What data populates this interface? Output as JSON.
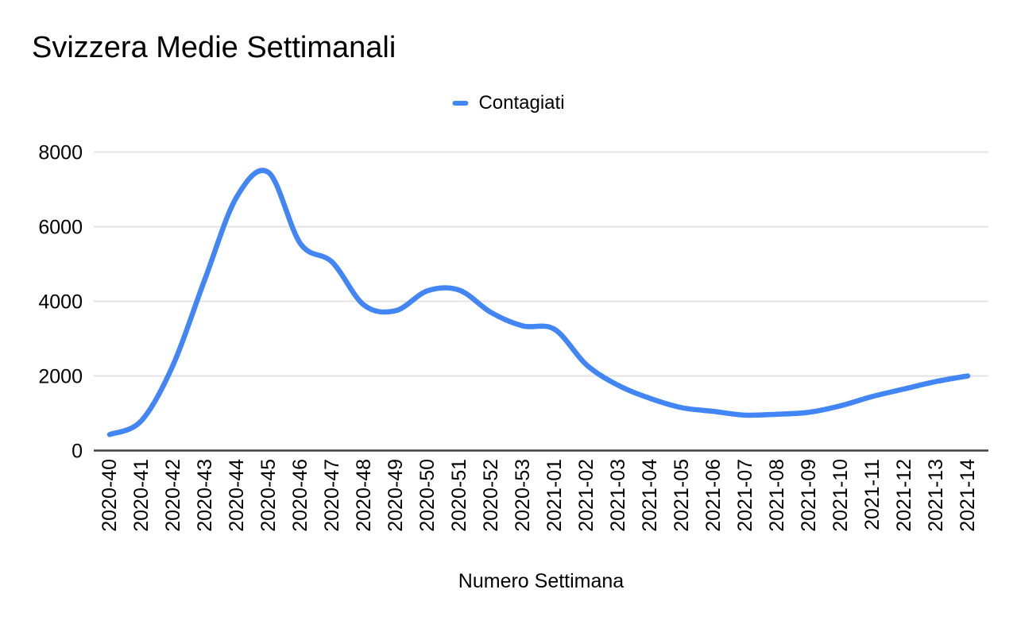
{
  "chart_data": {
    "type": "line",
    "title": "Svizzera Medie Settimanali",
    "xlabel": "Numero Settimana",
    "ylabel": "",
    "legend_position": "top-center",
    "grid": true,
    "ylim": [
      0,
      8000
    ],
    "yticks": [
      0,
      2000,
      4000,
      6000,
      8000
    ],
    "categories": [
      "2020-40",
      "2020-41",
      "2020-42",
      "2020-43",
      "2020-44",
      "2020-45",
      "2020-46",
      "2020-47",
      "2020-48",
      "2020-49",
      "2020-50",
      "2020-51",
      "2020-52",
      "2020-53",
      "2021-01",
      "2021-02",
      "2021-03",
      "2021-04",
      "2021-05",
      "2021-06",
      "2021-07",
      "2021-08",
      "2021-09",
      "2021-10",
      "2021-11",
      "2021-12",
      "2021-13",
      "2021-14"
    ],
    "series": [
      {
        "name": "Contagiati",
        "color": "#4285f4",
        "values": [
          430,
          800,
          2300,
          4600,
          6800,
          7450,
          5550,
          5050,
          3900,
          3750,
          4280,
          4300,
          3700,
          3340,
          3250,
          2300,
          1750,
          1400,
          1150,
          1050,
          950,
          975,
          1025,
          1200,
          1450,
          1650,
          1850,
          2000
        ]
      }
    ],
    "colors": {
      "line": "#4285f4",
      "gridline": "#e3e3e3",
      "zero_axis": "#404040",
      "text": "#000000",
      "background": "#ffffff"
    }
  }
}
